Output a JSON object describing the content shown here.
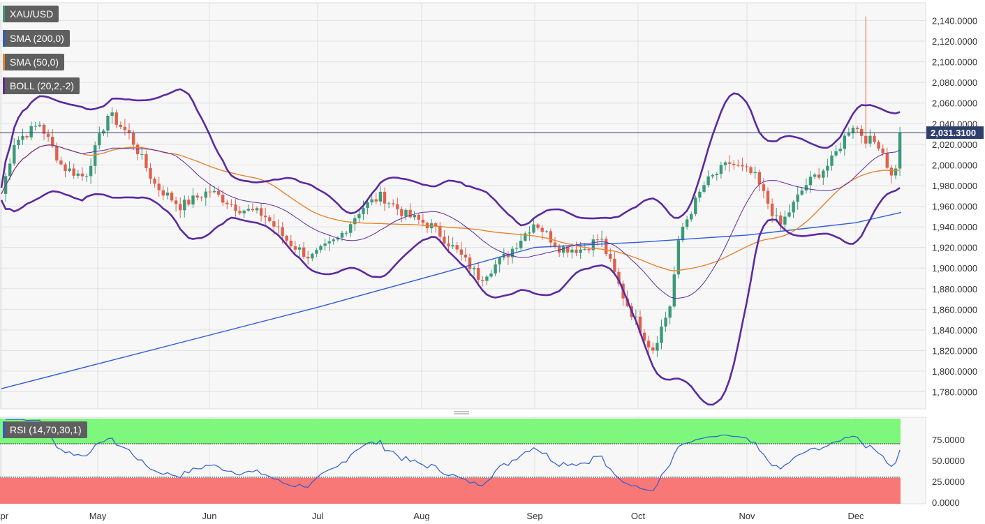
{
  "chart_data": [
    {
      "type": "candlestick",
      "symbol": "XAU/USD",
      "indicators": [
        "SMA (200,0)",
        "SMA (50,0)",
        "BOLL (20,2,-2)"
      ],
      "legend_placement": "top-left",
      "grid": true,
      "last_price": "2,031.3100",
      "y_ticks": [
        "2,140.0000",
        "2,120.0000",
        "2,100.0000",
        "2,080.0000",
        "2,060.0000",
        "2,040.0000",
        "2,020.0000",
        "2,000.0000",
        "1,980.0000",
        "1,960.0000",
        "1,940.0000",
        "1,920.0000",
        "1,900.0000",
        "1,880.0000",
        "1,860.0000",
        "1,840.0000",
        "1,820.0000",
        "1,800.0000",
        "1,780.0000"
      ],
      "x_ticks": [
        "Apr",
        "May",
        "Jun",
        "Jul",
        "Aug",
        "Sep",
        "Oct",
        "Nov",
        "Dec"
      ],
      "ylim": [
        1768,
        2150
      ],
      "colors": {
        "up": "#3a9a78",
        "down": "#e0604c",
        "sma200": "#2f5bd6",
        "sma50": "#e8822e",
        "boll": "#5b2aa0",
        "last_price_line": "#2e3f6e"
      },
      "anchors": [
        {
          "date": "Apr 1",
          "close": 1972
        },
        {
          "date": "Apr 5",
          "close": 2022
        },
        {
          "date": "Apr 13",
          "close": 2040
        },
        {
          "date": "Apr 20",
          "close": 1998
        },
        {
          "date": "Apr 27",
          "close": 1988
        },
        {
          "date": "May 4",
          "close": 2050
        },
        {
          "date": "May 10",
          "close": 2028
        },
        {
          "date": "May 17",
          "close": 1980
        },
        {
          "date": "May 24",
          "close": 1960
        },
        {
          "date": "Jun 1",
          "close": 1975
        },
        {
          "date": "Jun 9",
          "close": 1958
        },
        {
          "date": "Jun 16",
          "close": 1952
        },
        {
          "date": "Jun 23",
          "close": 1925
        },
        {
          "date": "Jun 29",
          "close": 1910
        },
        {
          "date": "Jul 7",
          "close": 1928
        },
        {
          "date": "Jul 14",
          "close": 1958
        },
        {
          "date": "Jul 20",
          "close": 1970
        },
        {
          "date": "Jul 27",
          "close": 1952
        },
        {
          "date": "Aug 4",
          "close": 1940
        },
        {
          "date": "Aug 11",
          "close": 1915
        },
        {
          "date": "Aug 17",
          "close": 1890
        },
        {
          "date": "Aug 25",
          "close": 1915
        },
        {
          "date": "Sep 1",
          "close": 1945
        },
        {
          "date": "Sep 8",
          "close": 1920
        },
        {
          "date": "Sep 15",
          "close": 1918
        },
        {
          "date": "Sep 20",
          "close": 1930
        },
        {
          "date": "Sep 27",
          "close": 1870
        },
        {
          "date": "Oct 5",
          "close": 1820
        },
        {
          "date": "Oct 10",
          "close": 1862
        },
        {
          "date": "Oct 13",
          "close": 1935
        },
        {
          "date": "Oct 20",
          "close": 1982
        },
        {
          "date": "Oct 27",
          "close": 2002
        },
        {
          "date": "Nov 3",
          "close": 1990
        },
        {
          "date": "Nov 10",
          "close": 1940
        },
        {
          "date": "Nov 17",
          "close": 1980
        },
        {
          "date": "Nov 24",
          "close": 2002
        },
        {
          "date": "Nov 30",
          "close": 2040
        },
        {
          "date": "Dec 4",
          "close": 2025
        },
        {
          "date": "Dec 8",
          "close": 2020
        },
        {
          "date": "Dec 12",
          "close": 1980
        },
        {
          "date": "Dec 13",
          "close": 2028
        },
        {
          "date": "Dec 14",
          "close": 2031.31
        }
      ],
      "spike": {
        "date": "Dec 4",
        "high": 2144
      },
      "sma200": [
        {
          "date": "Apr 1",
          "value": 1783
        },
        {
          "date": "Jul 1",
          "value": 1862
        },
        {
          "date": "Sep 1",
          "value": 1920
        },
        {
          "date": "Oct 1",
          "value": 1925
        },
        {
          "date": "Nov 1",
          "value": 1932
        },
        {
          "date": "Dec 1",
          "value": 1944
        },
        {
          "date": "Dec 14",
          "value": 1954
        }
      ]
    },
    {
      "type": "line",
      "indicator": "RSI (14,70,30,1)",
      "ylim": [
        0,
        100
      ],
      "y_ticks": [
        "75.0000",
        "50.0000",
        "25.0000",
        "0.0000"
      ],
      "overbought": 70,
      "oversold": 30,
      "colors": {
        "overbought_zone": "#7df87d",
        "oversold_zone": "#f87878",
        "line": "#2f5bd6"
      }
    }
  ]
}
